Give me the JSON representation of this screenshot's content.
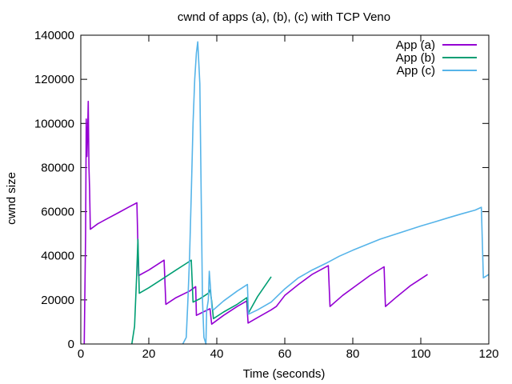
{
  "chart_data": {
    "type": "line",
    "title": "cwnd of apps (a), (b), (c) with TCP Veno",
    "xlabel": "Time (seconds)",
    "ylabel": "cwnd size",
    "xlim": [
      0,
      120
    ],
    "ylim": [
      0,
      140000
    ],
    "x_ticks": [
      "0",
      "20",
      "40",
      "60",
      "80",
      "100",
      "120"
    ],
    "y_ticks": [
      "0",
      "20000",
      "40000",
      "60000",
      "80000",
      "100000",
      "120000",
      "140000"
    ],
    "grid": false,
    "legend_position": "top-right",
    "series": [
      {
        "name": "App (a)",
        "color": "#9400d3",
        "points": [
          [
            1.0,
            0
          ],
          [
            1.4,
            50000
          ],
          [
            1.6,
            102000
          ],
          [
            1.8,
            85000
          ],
          [
            2.0,
            95000
          ],
          [
            2.2,
            110000
          ],
          [
            2.4,
            80000
          ],
          [
            2.6,
            70000
          ],
          [
            2.8,
            52000
          ],
          [
            5,
            54500
          ],
          [
            8,
            57000
          ],
          [
            11,
            59500
          ],
          [
            14,
            62000
          ],
          [
            16.5,
            64000
          ],
          [
            17.0,
            31000
          ],
          [
            20,
            33500
          ],
          [
            24.5,
            38000
          ],
          [
            25.0,
            18000
          ],
          [
            28,
            21000
          ],
          [
            32,
            24000
          ],
          [
            33.8,
            26000
          ],
          [
            34.0,
            13000
          ],
          [
            36,
            14500
          ],
          [
            38.0,
            16000
          ],
          [
            38.5,
            9000
          ],
          [
            42,
            13000
          ],
          [
            46,
            17000
          ],
          [
            48.8,
            19500
          ],
          [
            49.2,
            9500
          ],
          [
            52,
            12000
          ],
          [
            56,
            15500
          ],
          [
            57.5,
            17000
          ],
          [
            60,
            22000
          ],
          [
            64,
            27000
          ],
          [
            68,
            31500
          ],
          [
            72.8,
            35500
          ],
          [
            73.3,
            17000
          ],
          [
            77,
            22000
          ],
          [
            81,
            26500
          ],
          [
            85,
            31000
          ],
          [
            89.2,
            35000
          ],
          [
            89.6,
            17000
          ],
          [
            93,
            21500
          ],
          [
            97,
            26500
          ],
          [
            102,
            31500
          ]
        ]
      },
      {
        "name": "App (b)",
        "color": "#009e73",
        "points": [
          [
            15.0,
            0
          ],
          [
            15.8,
            8000
          ],
          [
            16.4,
            30000
          ],
          [
            16.8,
            47500
          ],
          [
            17.2,
            23000
          ],
          [
            20,
            25500
          ],
          [
            24,
            29500
          ],
          [
            28,
            33500
          ],
          [
            31.5,
            37000
          ],
          [
            32.5,
            38000
          ],
          [
            33.0,
            19000
          ],
          [
            35,
            20500
          ],
          [
            37.5,
            23000
          ],
          [
            38.0,
            24500
          ],
          [
            38.5,
            19500
          ],
          [
            39.0,
            11500
          ],
          [
            42,
            14500
          ],
          [
            46,
            18000
          ],
          [
            48.8,
            21000
          ],
          [
            49.3,
            14000
          ],
          [
            52,
            21500
          ],
          [
            56,
            30500
          ]
        ]
      },
      {
        "name": "App (c)",
        "color": "#56b4e9",
        "points": [
          [
            30.0,
            0
          ],
          [
            31.0,
            3000
          ],
          [
            31.5,
            20000
          ],
          [
            32.0,
            40000
          ],
          [
            32.5,
            68000
          ],
          [
            33.0,
            100000
          ],
          [
            33.5,
            120000
          ],
          [
            34.0,
            132000
          ],
          [
            34.4,
            137000
          ],
          [
            35.0,
            118000
          ],
          [
            35.4,
            70000
          ],
          [
            35.8,
            20000
          ],
          [
            36.2,
            3000
          ],
          [
            36.8,
            0
          ],
          [
            37.0,
            15000
          ],
          [
            37.5,
            20000
          ],
          [
            37.8,
            33000
          ],
          [
            38.2,
            24000
          ],
          [
            38.6,
            16000
          ],
          [
            39.0,
            15500
          ],
          [
            42,
            19500
          ],
          [
            46,
            24000
          ],
          [
            49.0,
            27000
          ],
          [
            49.3,
            13500
          ],
          [
            52,
            15500
          ],
          [
            56,
            19000
          ],
          [
            60,
            25000
          ],
          [
            64,
            30000
          ],
          [
            68,
            33500
          ],
          [
            72,
            36500
          ],
          [
            76,
            39800
          ],
          [
            80,
            42500
          ],
          [
            84,
            45000
          ],
          [
            88,
            47500
          ],
          [
            92,
            49500
          ],
          [
            96,
            51500
          ],
          [
            100,
            53500
          ],
          [
            104,
            55300
          ],
          [
            108,
            57200
          ],
          [
            112,
            59000
          ],
          [
            116,
            60700
          ],
          [
            117.8,
            62000
          ],
          [
            118.4,
            30000
          ],
          [
            120,
            31500
          ]
        ]
      }
    ]
  }
}
